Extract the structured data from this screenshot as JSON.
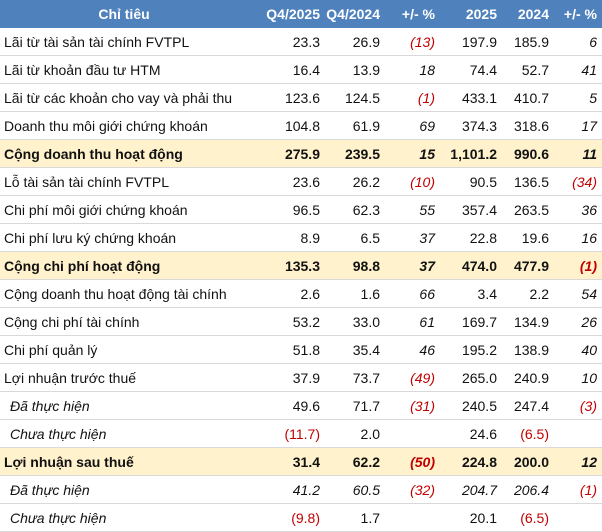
{
  "table": {
    "header": [
      "Chỉ tiêu",
      "Q4/2025",
      "Q4/2024",
      "+/- %",
      "2025",
      "2024",
      "+/- %"
    ],
    "rows": [
      [
        "Lãi từ tài sản tài chính FVTPL",
        "23.3",
        "26.9",
        "(13)",
        "197.9",
        "185.9",
        "6"
      ],
      [
        "Lãi từ khoản đầu tư HTM",
        "16.4",
        "13.9",
        "18",
        "74.4",
        "52.7",
        "41"
      ],
      [
        "Lãi từ các khoản cho vay và phải thu",
        "123.6",
        "124.5",
        "(1)",
        "433.1",
        "410.7",
        "5"
      ],
      [
        "Doanh thu môi giới chứng khoán",
        "104.8",
        "61.9",
        "69",
        "374.3",
        "318.6",
        "17"
      ],
      [
        "Cộng doanh thu hoạt động",
        "275.9",
        "239.5",
        "15",
        "1,101.2",
        "990.6",
        "11"
      ],
      [
        "Lỗ tài sản tài chính FVTPL",
        "23.6",
        "26.2",
        "(10)",
        "90.5",
        "136.5",
        "(34)"
      ],
      [
        "Chi phí môi giới chứng khoán",
        "96.5",
        "62.3",
        "55",
        "357.4",
        "263.5",
        "36"
      ],
      [
        "Chi phí lưu ký chứng khoán",
        "8.9",
        "6.5",
        "37",
        "22.8",
        "19.6",
        "16"
      ],
      [
        "Cộng chi phí hoạt động",
        "135.3",
        "98.8",
        "37",
        "474.0",
        "477.9",
        "(1)"
      ],
      [
        "Cộng doanh thu hoạt động tài chính",
        "2.6",
        "1.6",
        "66",
        "3.4",
        "2.2",
        "54"
      ],
      [
        "Cộng chi phí tài chính",
        "53.2",
        "33.0",
        "61",
        "169.7",
        "134.9",
        "26"
      ],
      [
        "Chi phí quản lý",
        "51.8",
        "35.4",
        "46",
        "195.2",
        "138.9",
        "40"
      ],
      [
        "Lợi nhuận trước thuế",
        "37.9",
        "73.7",
        "(49)",
        "265.0",
        "240.9",
        "10"
      ],
      [
        "Đã thực hiện",
        "49.6",
        "71.7",
        "(31)",
        "240.5",
        "247.4",
        "(3)"
      ],
      [
        "Chưa thực hiện",
        "(11.7)",
        "2.0",
        null,
        "24.6",
        "(6.5)",
        null
      ],
      [
        "Lợi nhuận sau thuế",
        "31.4",
        "62.2",
        "(50)",
        "224.8",
        "200.0",
        "12"
      ],
      [
        "Đã thực hiện",
        "41.2",
        "60.5",
        "(32)",
        "204.7",
        "206.4",
        "(1)"
      ],
      [
        "Chưa thực hiện",
        "(9.8)",
        "1.7",
        null,
        "20.1",
        "(6.5)",
        null
      ]
    ]
  }
}
